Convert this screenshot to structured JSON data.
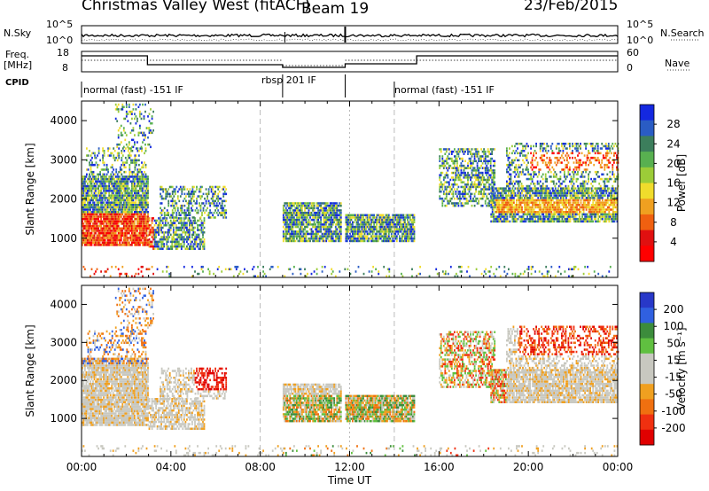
{
  "header": {
    "station": "Christmas Valley West (fitACF)",
    "beam": "Beam 19",
    "date": "23/Feb/2015"
  },
  "top_panels": {
    "nsky_label": "N.Sky",
    "nsky_ticks": [
      "10^5",
      "10^0"
    ],
    "nsearch_label": "N.Search",
    "nsearch_ticks": [
      "10^5",
      "10^0"
    ],
    "freq_label": "Freq.",
    "freq_unit": "[MHz]",
    "freq_ticks": [
      "18",
      "8"
    ],
    "nave_label": "Nave",
    "nave_ticks": [
      "60",
      "0"
    ],
    "cpid_label": "CPID",
    "modes": [
      {
        "text": "normal (fast) -151 IF"
      },
      {
        "text": "rbsp 201 IF"
      },
      {
        "text": "normal (fast) -151 IF"
      }
    ]
  },
  "chart_data": [
    {
      "type": "heatmap",
      "name": "power",
      "ylabel": "Slant Range [km]",
      "yticks": [
        "4000",
        "3000",
        "2000",
        "1000"
      ],
      "ylim": [
        0,
        4500
      ],
      "colorbar_label": "Power [dB]",
      "colorbar_ticks": [
        "28",
        "24",
        "20",
        "16",
        "12",
        "8",
        "4"
      ],
      "colorbar_colors": [
        "#1428e0",
        "#2a5cc4",
        "#3c7e5c",
        "#58b050",
        "#9ccc38",
        "#f0dc2c",
        "#f0a020",
        "#f06010",
        "#e01010",
        "#ff0000"
      ]
    },
    {
      "type": "heatmap",
      "name": "velocity",
      "ylabel": "Slant Range [km]",
      "yticks": [
        "4000",
        "3000",
        "2000",
        "1000"
      ],
      "ylim": [
        0,
        4500
      ],
      "colorbar_label": "Velocity [m s⁻¹]",
      "colorbar_ticks": [
        "200",
        "100",
        "50",
        "15",
        "-15",
        "-50",
        "-100",
        "-200"
      ],
      "colorbar_colors": [
        "#2838c8",
        "#3060e0",
        "#3c8c3c",
        "#60c040",
        "#c8c8c0",
        "#c8c8c0",
        "#f0a020",
        "#f07010",
        "#f03010",
        "#e00000"
      ]
    }
  ],
  "xaxis": {
    "label": "Time UT",
    "ticks": [
      "00:00",
      "04:00",
      "08:00",
      "12:00",
      "16:00",
      "20:00",
      "00:00"
    ]
  }
}
